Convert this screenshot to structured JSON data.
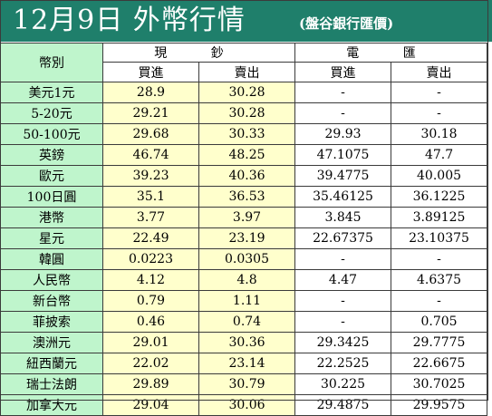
{
  "header": {
    "title": "12月9日 外幣行情",
    "source": "(盤谷銀行匯價)",
    "background_color": "#1f7f6b",
    "text_color": "#ffffff"
  },
  "table": {
    "currency_column_label": "幣別",
    "groups": [
      {
        "label": "現 鈔",
        "subheaders": [
          "買進",
          "賣出"
        ]
      },
      {
        "label": "電 匯",
        "subheaders": [
          "買進",
          "賣出"
        ]
      }
    ],
    "colors": {
      "currency_bg": "#bff5cc",
      "cash_bg": "#ffffcc",
      "tt_bg": "#ffffff",
      "border": "#3b3b3b"
    },
    "rows": [
      {
        "currency": "美元1元",
        "cash_buy": "28.9",
        "cash_sell": "30.28",
        "tt_buy": "-",
        "tt_sell": "-"
      },
      {
        "currency": "5-20元",
        "cash_buy": "29.21",
        "cash_sell": "30.28",
        "tt_buy": "-",
        "tt_sell": "-"
      },
      {
        "currency": "50-100元",
        "cash_buy": "29.68",
        "cash_sell": "30.33",
        "tt_buy": "29.93",
        "tt_sell": "30.18"
      },
      {
        "currency": "英鎊",
        "cash_buy": "46.74",
        "cash_sell": "48.25",
        "tt_buy": "47.1075",
        "tt_sell": "47.7"
      },
      {
        "currency": "歐元",
        "cash_buy": "39.23",
        "cash_sell": "40.36",
        "tt_buy": "39.4775",
        "tt_sell": "40.005"
      },
      {
        "currency": "100日圓",
        "cash_buy": "35.1",
        "cash_sell": "36.53",
        "tt_buy": "35.46125",
        "tt_sell": "36.1225"
      },
      {
        "currency": "港幣",
        "cash_buy": "3.77",
        "cash_sell": "3.97",
        "tt_buy": "3.845",
        "tt_sell": "3.89125"
      },
      {
        "currency": "星元",
        "cash_buy": "22.49",
        "cash_sell": "23.19",
        "tt_buy": "22.67375",
        "tt_sell": "23.10375"
      },
      {
        "currency": "韓圓",
        "cash_buy": "0.0223",
        "cash_sell": "0.0305",
        "tt_buy": "-",
        "tt_sell": "-"
      },
      {
        "currency": "人民幣",
        "cash_buy": "4.12",
        "cash_sell": "4.8",
        "tt_buy": "4.47",
        "tt_sell": "4.6375"
      },
      {
        "currency": "新台幣",
        "cash_buy": "0.79",
        "cash_sell": "1.11",
        "tt_buy": "-",
        "tt_sell": "-"
      },
      {
        "currency": "菲披索",
        "cash_buy": "0.46",
        "cash_sell": "0.74",
        "tt_buy": "-",
        "tt_sell": "0.705"
      },
      {
        "currency": "澳洲元",
        "cash_buy": "29.01",
        "cash_sell": "30.36",
        "tt_buy": "29.3425",
        "tt_sell": "29.7775"
      },
      {
        "currency": "紐西蘭元",
        "cash_buy": "22.02",
        "cash_sell": "23.14",
        "tt_buy": "22.2525",
        "tt_sell": "22.6675"
      },
      {
        "currency": "瑞士法朗",
        "cash_buy": "29.89",
        "cash_sell": "30.79",
        "tt_buy": "30.225",
        "tt_sell": "30.7025"
      },
      {
        "currency": "加拿大元",
        "cash_buy": "29.04",
        "cash_sell": "30.06",
        "tt_buy": "29.4875",
        "tt_sell": "29.9575"
      }
    ]
  }
}
